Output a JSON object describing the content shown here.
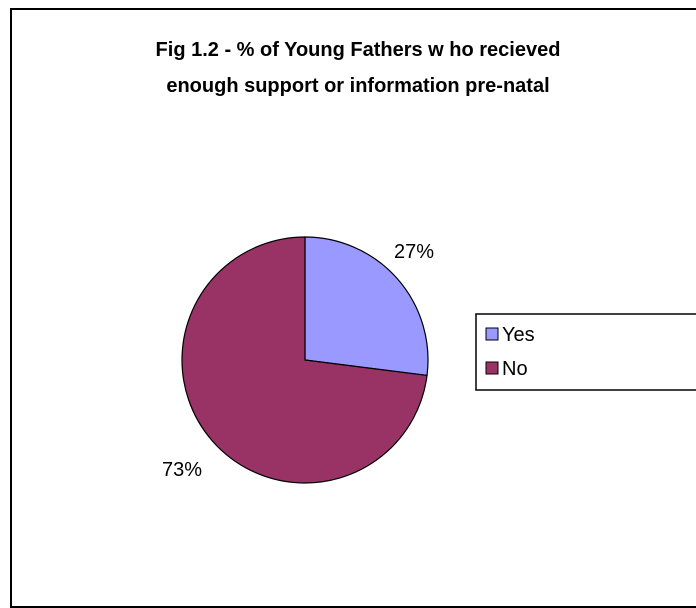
{
  "chart_data": {
    "type": "pie",
    "title": "Fig 1.2 - % of Young Fathers who recieved enough support or information pre-natal",
    "title_lines": [
      "Fig 1.2 - % of Young Fathers w ho recieved",
      "enough support or information pre-natal"
    ],
    "categories": [
      "Yes",
      "No"
    ],
    "values": [
      27,
      73
    ],
    "labels": [
      "27%",
      "73%"
    ],
    "colors": [
      "#9999FF",
      "#993366"
    ],
    "legend_position": "right",
    "start_angle": "top, clockwise"
  }
}
